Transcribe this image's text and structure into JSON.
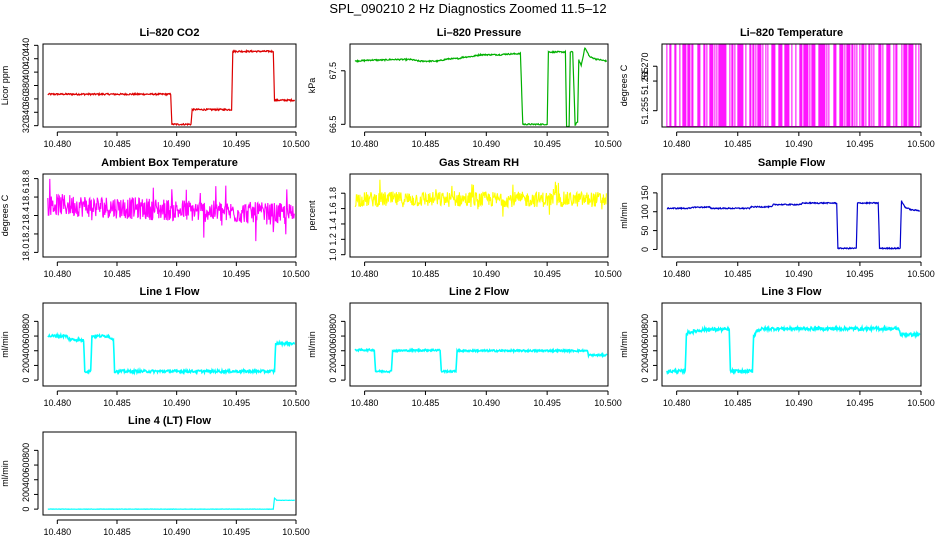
{
  "figure": {
    "title": "SPL_090210  2 Hz Diagnostics Zoomed 11.5–12"
  },
  "colors": {
    "red": "#dd0000",
    "green": "#00b000",
    "magenta": "#ff00ff",
    "yellow": "#ffff00",
    "blue": "#0000cc",
    "cyan": "#00ffff",
    "axis": "#000000"
  },
  "chart_data": [
    {
      "id": "co2",
      "type": "line",
      "title": "Li–820 CO2",
      "ylabel": "Licor ppm",
      "color": "red",
      "xlim": [
        10.4788,
        10.5
      ],
      "xticks": [
        10.48,
        10.485,
        10.49,
        10.495,
        10.5
      ],
      "xtick_labels": [
        "10.480",
        "10.485",
        "10.490",
        "10.495",
        "10.500"
      ],
      "ylim": [
        318,
        442
      ],
      "yticks": [
        320,
        340,
        360,
        380,
        400,
        420,
        440
      ],
      "ytick_labels": [
        "320",
        "340",
        "360",
        "380",
        "400",
        "420",
        "440"
      ],
      "noise": 1.2,
      "x": [
        10.4792,
        10.4895,
        10.4896,
        10.4912,
        10.4913,
        10.4946,
        10.4947,
        10.4981,
        10.4982,
        10.4999
      ],
      "y": [
        367,
        367,
        322,
        322,
        344,
        344,
        431,
        431,
        358,
        358
      ]
    },
    {
      "id": "pressure",
      "type": "line",
      "title": "Li–820 Pressure",
      "ylabel": "kPa",
      "color": "green",
      "xlim": [
        10.4788,
        10.5
      ],
      "xticks": [
        10.48,
        10.485,
        10.49,
        10.495,
        10.5
      ],
      "xtick_labels": [
        "10.480",
        "10.485",
        "10.490",
        "10.495",
        "10.500"
      ],
      "ylim": [
        66.45,
        68.0
      ],
      "yticks": [
        66.5,
        67.5
      ],
      "ytick_labels": [
        "66.5",
        "67.5"
      ],
      "noise": 0.012,
      "x": [
        10.4792,
        10.4799,
        10.4805,
        10.4815,
        10.4822,
        10.4838,
        10.4845,
        10.486,
        10.4868,
        10.4878,
        10.488,
        10.4889,
        10.4895,
        10.4912,
        10.4915,
        10.4928,
        10.493,
        10.495,
        10.4951,
        10.4965,
        10.4966,
        10.4968,
        10.4969,
        10.4971,
        10.4973,
        10.4975,
        10.4976,
        10.4978,
        10.4981,
        10.4985,
        10.499,
        10.4999
      ],
      "y": [
        67.68,
        67.69,
        67.7,
        67.7,
        67.71,
        67.71,
        67.68,
        67.68,
        67.72,
        67.73,
        67.75,
        67.77,
        67.8,
        67.8,
        67.81,
        67.82,
        66.5,
        66.5,
        67.85,
        67.85,
        66.45,
        66.45,
        67.85,
        67.85,
        66.48,
        66.55,
        67.7,
        67.6,
        67.93,
        67.76,
        67.72,
        67.68
      ]
    },
    {
      "id": "temperature",
      "type": "bars",
      "title": "Li–820 Temperature",
      "ylabel": "degrees C",
      "color": "magenta",
      "xlim": [
        10.4788,
        10.5
      ],
      "xticks": [
        10.48,
        10.485,
        10.49,
        10.495,
        10.5
      ],
      "xtick_labels": [
        "10.480",
        "10.485",
        "10.490",
        "10.495",
        "10.500"
      ],
      "ylim": [
        51.2495,
        51.2775
      ],
      "yticks": [
        51.255,
        51.265,
        51.27
      ],
      "ytick_labels": [
        "51.255",
        "51.265",
        "51.270"
      ],
      "low": 51.2495,
      "high": 51.2775,
      "density_note": "rapid switching between two discrete readings",
      "x_start": 10.4792,
      "x_end": 10.4999
    },
    {
      "id": "ambient",
      "type": "noise",
      "title": "Ambient Box Temperature",
      "ylabel": "degrees C",
      "color": "magenta",
      "xlim": [
        10.4788,
        10.5
      ],
      "xticks": [
        10.48,
        10.485,
        10.49,
        10.495,
        10.5
      ],
      "xtick_labels": [
        "10.480",
        "10.485",
        "10.490",
        "10.495",
        "10.500"
      ],
      "ylim": [
        17.95,
        18.85
      ],
      "yticks": [
        18.0,
        18.2,
        18.4,
        18.6,
        18.8
      ],
      "ytick_labels": [
        "18.0",
        "18.2",
        "18.4",
        "18.6",
        "18.8"
      ],
      "x_start": 10.4792,
      "x_end": 10.4999,
      "center": [
        18.52,
        18.46,
        18.41
      ],
      "spread": 0.12
    },
    {
      "id": "rh",
      "type": "noise",
      "title": "Gas Stream RH",
      "ylabel": "percent",
      "color": "yellow",
      "xlim": [
        10.4788,
        10.5
      ],
      "xticks": [
        10.48,
        10.485,
        10.49,
        10.495,
        10.5
      ],
      "xtick_labels": [
        "10.480",
        "10.485",
        "10.490",
        "10.495",
        "10.500"
      ],
      "ylim": [
        0.97,
        2.05
      ],
      "yticks": [
        1.0,
        1.2,
        1.4,
        1.6,
        1.8
      ],
      "ytick_labels": [
        "1.0",
        "1.2",
        "1.4",
        "1.6",
        "1.8"
      ],
      "x_start": 10.4792,
      "x_end": 10.4999,
      "center": [
        1.72,
        1.72,
        1.72
      ],
      "spread": 0.1
    },
    {
      "id": "sample",
      "type": "line",
      "title": "Sample Flow",
      "ylabel": "ml/min",
      "color": "blue",
      "xlim": [
        10.4788,
        10.5
      ],
      "xticks": [
        10.48,
        10.485,
        10.49,
        10.495,
        10.5
      ],
      "xtick_labels": [
        "10.480",
        "10.485",
        "10.490",
        "10.495",
        "10.500"
      ],
      "ylim": [
        -20,
        200
      ],
      "yticks": [
        0,
        50,
        100,
        150
      ],
      "ytick_labels": [
        "0",
        "50",
        "100",
        "150"
      ],
      "noise": 1.5,
      "x": [
        10.4792,
        10.4812,
        10.4813,
        10.4827,
        10.4828,
        10.486,
        10.4861,
        10.4878,
        10.4879,
        10.4902,
        10.4903,
        10.4931,
        10.4932,
        10.4947,
        10.4948,
        10.4965,
        10.4966,
        10.4983,
        10.4984,
        10.4987,
        10.4992,
        10.4999
      ],
      "y": [
        109,
        109,
        112,
        112,
        109,
        109,
        113,
        113,
        119,
        119,
        123,
        123,
        3,
        3,
        123,
        123,
        3,
        3,
        128,
        112,
        105,
        103
      ]
    },
    {
      "id": "line1",
      "type": "line",
      "title": "Line 1 Flow",
      "ylabel": "ml/min",
      "color": "cyan",
      "xlim": [
        10.4788,
        10.5
      ],
      "xticks": [
        10.48,
        10.485,
        10.49,
        10.495,
        10.5
      ],
      "xtick_labels": [
        "10.480",
        "10.485",
        "10.490",
        "10.495",
        "10.500"
      ],
      "ylim": [
        -80,
        1050
      ],
      "yticks": [
        0,
        200,
        400,
        600,
        800
      ],
      "ytick_labels": [
        "0",
        "200",
        "400",
        "600",
        "800"
      ],
      "noise": 18,
      "x": [
        10.4792,
        10.4808,
        10.4809,
        10.4822,
        10.4823,
        10.4828,
        10.4829,
        10.4843,
        10.4844,
        10.4847,
        10.4848,
        10.4857,
        10.4858,
        10.4982,
        10.4983,
        10.4999
      ],
      "y": [
        600,
        600,
        560,
        540,
        120,
        120,
        600,
        600,
        580,
        560,
        120,
        120,
        120,
        120,
        500,
        500
      ]
    },
    {
      "id": "line2",
      "type": "line",
      "title": "Line 2 Flow",
      "ylabel": "ml/min",
      "color": "cyan",
      "xlim": [
        10.4788,
        10.5
      ],
      "xticks": [
        10.48,
        10.485,
        10.49,
        10.495,
        10.5
      ],
      "xtick_labels": [
        "10.480",
        "10.485",
        "10.490",
        "10.495",
        "10.500"
      ],
      "ylim": [
        -80,
        1050
      ],
      "yticks": [
        0,
        200,
        400,
        600,
        800
      ],
      "ytick_labels": [
        "0",
        "200",
        "400",
        "600",
        "800"
      ],
      "noise": 12,
      "x": [
        10.4792,
        10.4808,
        10.4809,
        10.4822,
        10.4823,
        10.4862,
        10.4863,
        10.4875,
        10.4876,
        10.4983,
        10.4984,
        10.4999
      ],
      "y": [
        410,
        410,
        120,
        120,
        400,
        410,
        120,
        120,
        400,
        400,
        340,
        340
      ]
    },
    {
      "id": "line3",
      "type": "line",
      "title": "Line 3 Flow",
      "ylabel": "ml/min",
      "color": "cyan",
      "xlim": [
        10.4788,
        10.5
      ],
      "xticks": [
        10.48,
        10.485,
        10.49,
        10.495,
        10.5
      ],
      "xtick_labels": [
        "10.480",
        "10.485",
        "10.490",
        "10.495",
        "10.500"
      ],
      "ylim": [
        -80,
        1050
      ],
      "yticks": [
        0,
        200,
        400,
        600,
        800
      ],
      "ytick_labels": [
        "0",
        "200",
        "400",
        "600",
        "800"
      ],
      "noise": 22,
      "x": [
        10.4792,
        10.4807,
        10.4808,
        10.4813,
        10.4823,
        10.4824,
        10.4843,
        10.4844,
        10.4862,
        10.4863,
        10.4866,
        10.4872,
        10.4982,
        10.4983,
        10.4999
      ],
      "y": [
        120,
        120,
        640,
        660,
        690,
        690,
        690,
        120,
        120,
        600,
        680,
        700,
        700,
        620,
        620
      ]
    },
    {
      "id": "line4",
      "type": "line",
      "title": "Line 4 (LT) Flow",
      "ylabel": "ml/min",
      "color": "cyan",
      "xlim": [
        10.4788,
        10.5
      ],
      "xticks": [
        10.48,
        10.485,
        10.49,
        10.495,
        10.5
      ],
      "xtick_labels": [
        "10.480",
        "10.485",
        "10.490",
        "10.495",
        "10.500"
      ],
      "ylim": [
        -80,
        1050
      ],
      "yticks": [
        0,
        200,
        400,
        600,
        800
      ],
      "ytick_labels": [
        "0",
        "200",
        "400",
        "600",
        "800"
      ],
      "noise": 2,
      "x": [
        10.4792,
        10.4981,
        10.4982,
        10.4984,
        10.4999
      ],
      "y": [
        0,
        0,
        150,
        120,
        120
      ]
    }
  ]
}
